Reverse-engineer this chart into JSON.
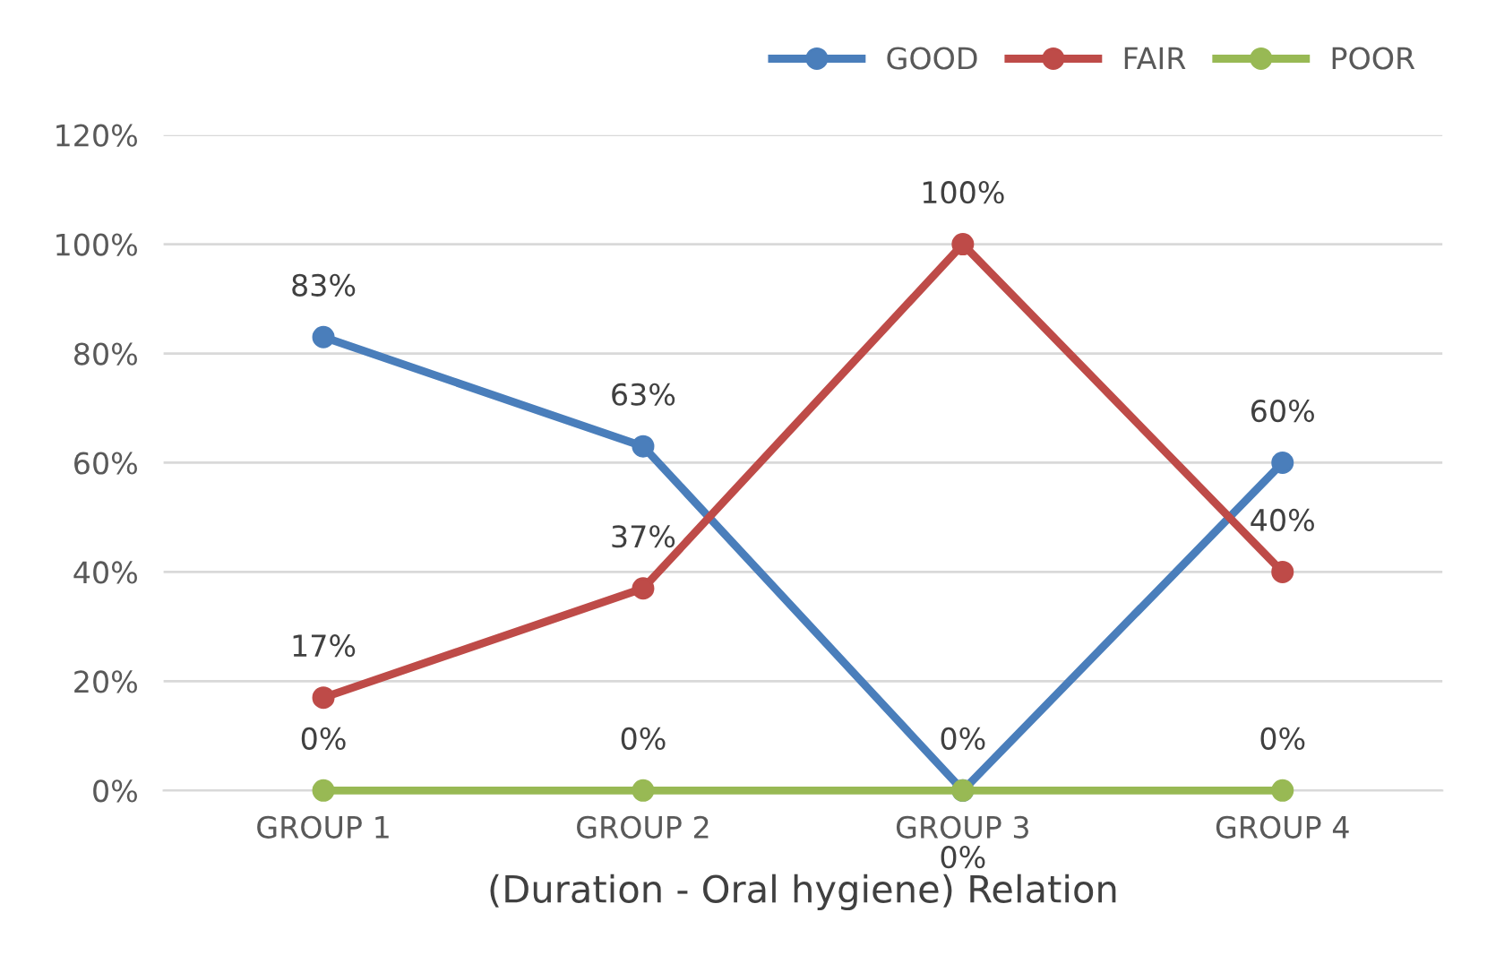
{
  "chart_data": {
    "type": "line",
    "xlabel": "(Duration - Oral hygiene) Relation",
    "categories": [
      "GROUP 1",
      "GROUP 2",
      "GROUP 3",
      "GROUP 4"
    ],
    "series": [
      {
        "name": "GOOD",
        "color": "#4a7ebb",
        "values": [
          83,
          63,
          0,
          60
        ],
        "value_labels": [
          "83%",
          "63%",
          "0%",
          "60%"
        ]
      },
      {
        "name": "FAIR",
        "color": "#be4b48",
        "values": [
          17,
          37,
          100,
          40
        ],
        "value_labels": [
          "17%",
          "37%",
          "100%",
          "40%"
        ]
      },
      {
        "name": "POOR",
        "color": "#98b954",
        "values": [
          0,
          0,
          0,
          0
        ],
        "value_labels": [
          "0%",
          "0%",
          "0%",
          "0%"
        ]
      }
    ],
    "ylim": [
      0,
      120
    ],
    "yticks": [
      {
        "value": 0,
        "label": "0%"
      },
      {
        "value": 20,
        "label": "20%"
      },
      {
        "value": 40,
        "label": "40%"
      },
      {
        "value": 60,
        "label": "60%"
      },
      {
        "value": 80,
        "label": "80%"
      },
      {
        "value": 100,
        "label": "100%"
      },
      {
        "value": 120,
        "label": "120%"
      }
    ],
    "grid": "y",
    "legend": "top right",
    "marker": "circle",
    "line_style": "solid"
  }
}
